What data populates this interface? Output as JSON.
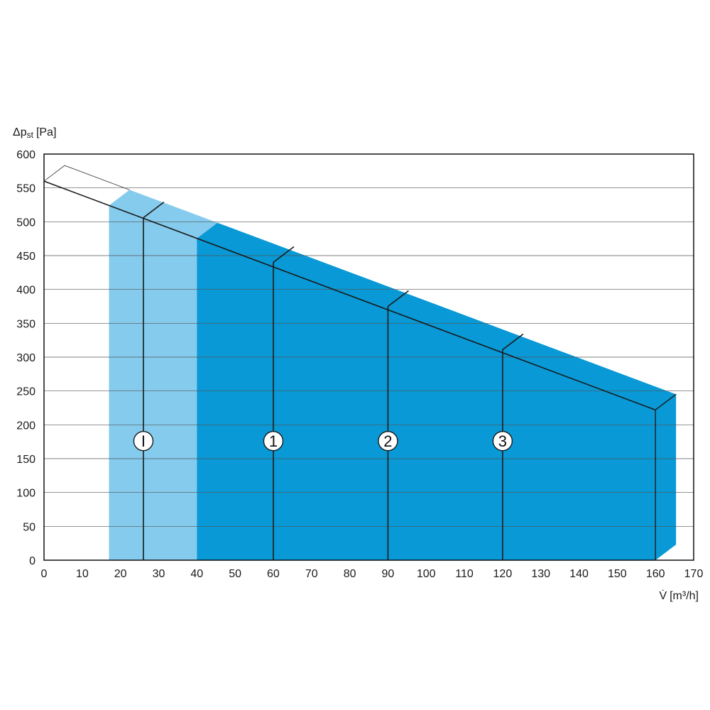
{
  "chart_data": {
    "type": "area",
    "title": "",
    "xlabel_main": "V̇",
    "xlabel_unit": "[m³/h]",
    "ylabel_main": "Δp",
    "ylabel_sub": "st",
    "ylabel_unit": "[Pa]",
    "xlim": [
      0,
      170
    ],
    "ylim": [
      0,
      600
    ],
    "x_ticks": [
      0,
      10,
      20,
      30,
      40,
      50,
      60,
      70,
      80,
      90,
      100,
      110,
      120,
      130,
      140,
      150,
      160,
      170
    ],
    "y_ticks": [
      0,
      50,
      100,
      150,
      200,
      250,
      300,
      350,
      400,
      450,
      500,
      550,
      600
    ],
    "x_tick_labels": [
      "0",
      "10",
      "20",
      "30",
      "40",
      "50",
      "60",
      "70",
      "80",
      "90",
      "100",
      "110",
      "120",
      "130",
      "140",
      "150",
      "160",
      "170"
    ],
    "y_tick_labels": [
      "0",
      "50",
      "100",
      "150",
      "200",
      "250",
      "300",
      "350",
      "400",
      "450",
      "500",
      "550",
      "600"
    ],
    "grid": true,
    "fan_curve": {
      "x": [
        0,
        160
      ],
      "y": [
        560,
        222
      ]
    },
    "light_region": {
      "x_start": 17,
      "x_end": 40,
      "color": "#85cbed"
    },
    "dark_region": {
      "x_start": 40,
      "x_end": 160,
      "color": "#0899d6"
    },
    "speed_lines": [
      {
        "label": "I",
        "x": 26,
        "y": 506
      },
      {
        "label": "1",
        "x": 60,
        "y": 440
      },
      {
        "label": "2",
        "x": 90,
        "y": 375
      },
      {
        "label": "3",
        "x": 120,
        "y": 311
      }
    ],
    "marker_y": 176
  }
}
